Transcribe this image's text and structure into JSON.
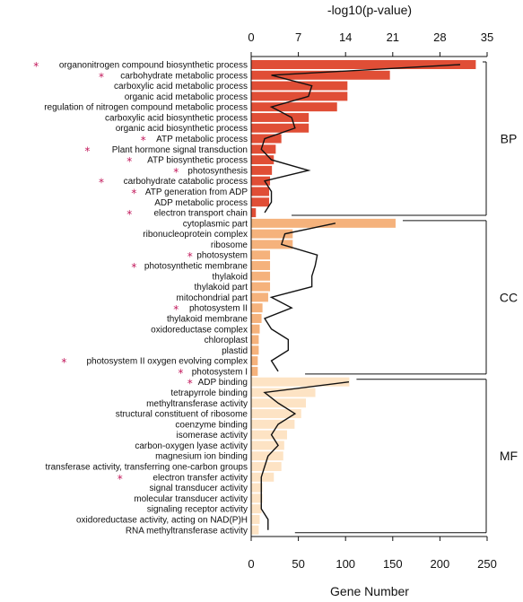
{
  "chart_data": {
    "type": "bar",
    "orientation": "horizontal",
    "top_axis": {
      "label": "-log10(p-value)",
      "range": [
        0,
        35
      ],
      "ticks": [
        "0",
        "7",
        "14",
        "21",
        "28",
        "35"
      ]
    },
    "bottom_axis": {
      "label": "Gene Number",
      "range": [
        0,
        250
      ],
      "ticks": [
        "0",
        "50",
        "100",
        "150",
        "200",
        "250"
      ]
    },
    "colors": {
      "BP": "#e04e36",
      "CC": "#f5b27c",
      "MF": "#fde3c4",
      "star": "#c2185b",
      "line": "#111111"
    },
    "star_symbol": "*",
    "groups": [
      {
        "name": "BP",
        "items": [
          {
            "label": "organonitrogen compound biosynthetic process",
            "starred": true,
            "gene_number": 238,
            "neg_log10_p": 31
          },
          {
            "label": "carbohydrate metabolic process",
            "starred": true,
            "gene_number": 147,
            "neg_log10_p": 3
          },
          {
            "label": "carboxylic acid metabolic process",
            "starred": false,
            "gene_number": 102,
            "neg_log10_p": 9
          },
          {
            "label": "organic acid metabolic process",
            "starred": false,
            "gene_number": 102,
            "neg_log10_p": 8.5
          },
          {
            "label": "regulation of nitrogen compound metabolic process",
            "starred": false,
            "gene_number": 91,
            "neg_log10_p": 3
          },
          {
            "label": "carboxylic acid biosynthetic process",
            "starred": false,
            "gene_number": 61,
            "neg_log10_p": 6
          },
          {
            "label": "organic acid biosynthetic process",
            "starred": false,
            "gene_number": 61,
            "neg_log10_p": 6.5
          },
          {
            "label": "ATP metabolic process",
            "starred": true,
            "gene_number": 32,
            "neg_log10_p": 2
          },
          {
            "label": "Plant hormone signal transduction",
            "starred": true,
            "gene_number": 26,
            "neg_log10_p": 1.5
          },
          {
            "label": "ATP biosynthetic process",
            "starred": true,
            "gene_number": 24,
            "neg_log10_p": 3
          },
          {
            "label": "photosynthesis",
            "starred": true,
            "gene_number": 22,
            "neg_log10_p": 8.5
          },
          {
            "label": "carbohydrate catabolic process",
            "starred": true,
            "gene_number": 20,
            "neg_log10_p": 2
          },
          {
            "label": "ATP generation from ADP",
            "starred": true,
            "gene_number": 19,
            "neg_log10_p": 3
          },
          {
            "label": "ADP metabolic process",
            "starred": false,
            "gene_number": 19,
            "neg_log10_p": 3
          },
          {
            "label": "electron transport chain",
            "starred": true,
            "gene_number": 5,
            "neg_log10_p": 2
          }
        ]
      },
      {
        "name": "CC",
        "items": [
          {
            "label": "cytoplasmic part",
            "starred": false,
            "gene_number": 153,
            "neg_log10_p": 12.5
          },
          {
            "label": "ribonucleoprotein complex",
            "starred": false,
            "gene_number": 44,
            "neg_log10_p": 5
          },
          {
            "label": "ribosome",
            "starred": false,
            "gene_number": 44,
            "neg_log10_p": 4.5
          },
          {
            "label": "photosystem",
            "starred": true,
            "gene_number": 20,
            "neg_log10_p": 9.8
          },
          {
            "label": "photosynthetic membrane",
            "starred": true,
            "gene_number": 20,
            "neg_log10_p": 9.5
          },
          {
            "label": "thylakoid",
            "starred": false,
            "gene_number": 20,
            "neg_log10_p": 9
          },
          {
            "label": "thylakoid part",
            "starred": false,
            "gene_number": 20,
            "neg_log10_p": 9
          },
          {
            "label": "mitochondrial part",
            "starred": false,
            "gene_number": 18,
            "neg_log10_p": 3
          },
          {
            "label": "photosystem II",
            "starred": true,
            "gene_number": 12,
            "neg_log10_p": 6
          },
          {
            "label": "thylakoid membrane",
            "starred": false,
            "gene_number": 11,
            "neg_log10_p": 2
          },
          {
            "label": "oxidoreductase complex",
            "starred": false,
            "gene_number": 9,
            "neg_log10_p": 3
          },
          {
            "label": "chloroplast",
            "starred": false,
            "gene_number": 8,
            "neg_log10_p": 5.5
          },
          {
            "label": "plastid",
            "starred": false,
            "gene_number": 8,
            "neg_log10_p": 5.5
          },
          {
            "label": "photosystem II oxygen evolving complex",
            "starred": true,
            "gene_number": 7,
            "neg_log10_p": 3
          },
          {
            "label": "photosystem I",
            "starred": true,
            "gene_number": 7,
            "neg_log10_p": 4
          }
        ]
      },
      {
        "name": "MF",
        "items": [
          {
            "label": "ADP binding",
            "starred": true,
            "gene_number": 104,
            "neg_log10_p": 14.5
          },
          {
            "label": "tetrapyrrole binding",
            "starred": false,
            "gene_number": 68,
            "neg_log10_p": 2
          },
          {
            "label": "methyltransferase activity",
            "starred": false,
            "gene_number": 58,
            "neg_log10_p": 4
          },
          {
            "label": "structural constituent of ribosome",
            "starred": false,
            "gene_number": 53,
            "neg_log10_p": 6.5
          },
          {
            "label": "coenzyme binding",
            "starred": false,
            "gene_number": 46,
            "neg_log10_p": 4
          },
          {
            "label": "isomerase activity",
            "starred": false,
            "gene_number": 38,
            "neg_log10_p": 3
          },
          {
            "label": "carbon-oxygen lyase activity",
            "starred": false,
            "gene_number": 35,
            "neg_log10_p": 4
          },
          {
            "label": "magnesium ion binding",
            "starred": false,
            "gene_number": 34,
            "neg_log10_p": 2.5
          },
          {
            "label": "transferase activity, transferring one-carbon groups",
            "starred": false,
            "gene_number": 32,
            "neg_log10_p": 2
          },
          {
            "label": "electron transfer activity",
            "starred": true,
            "gene_number": 24,
            "neg_log10_p": 1.5
          },
          {
            "label": "signal transducer activity",
            "starred": false,
            "gene_number": 12,
            "neg_log10_p": 1.5
          },
          {
            "label": "molecular transducer activity",
            "starred": false,
            "gene_number": 12,
            "neg_log10_p": 1.5
          },
          {
            "label": "signaling receptor activity",
            "starred": false,
            "gene_number": 11,
            "neg_log10_p": 1.5
          },
          {
            "label": "oxidoreductase activity, acting on NAD(P)H",
            "starred": false,
            "gene_number": 9,
            "neg_log10_p": 2.5
          },
          {
            "label": "RNA methyltransferase activity",
            "starred": false,
            "gene_number": 8,
            "neg_log10_p": 2.5
          }
        ]
      }
    ]
  }
}
